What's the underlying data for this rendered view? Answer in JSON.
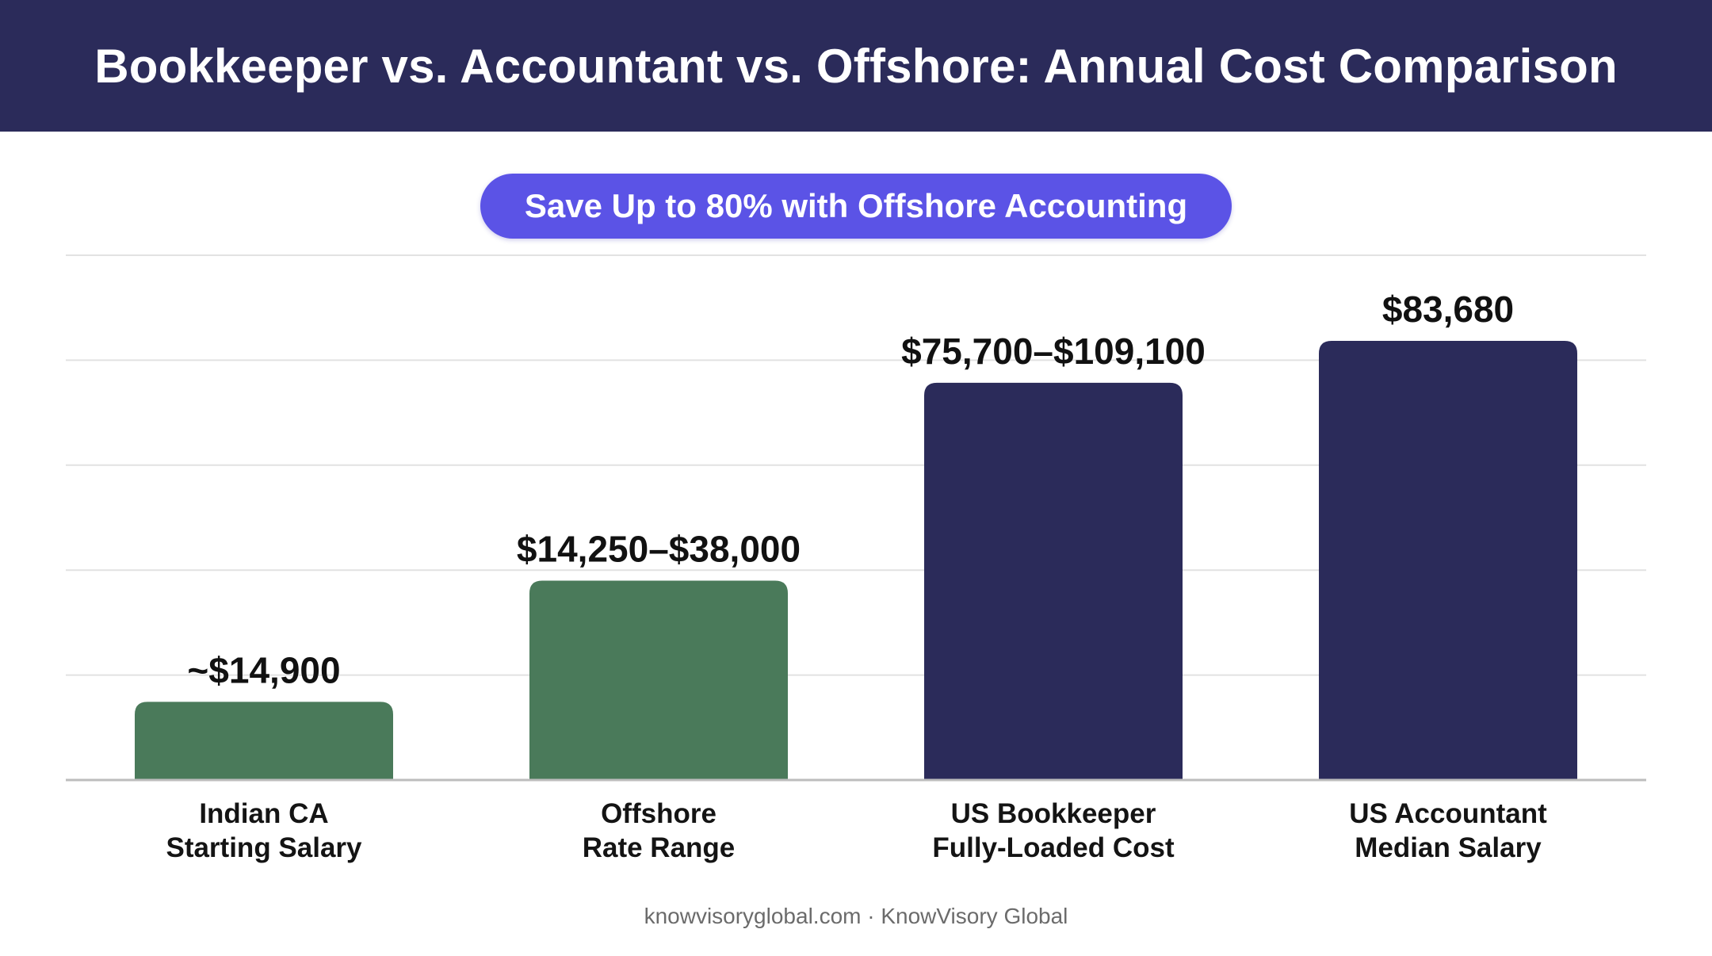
{
  "header": {
    "title": "Bookkeeper vs. Accountant vs. Offshore: Annual Cost Comparison"
  },
  "badge": {
    "text": "Save Up to 80% with Offshore Accounting"
  },
  "footer": {
    "text": "knowvisoryglobal.com · KnowVisory Global"
  },
  "colors": {
    "header_bg": "#2b2b5a",
    "badge_bg": "#5b53e6",
    "offshore_bar": "#4a7a5a",
    "us_bar": "#2b2b5a",
    "gridline": "#e2e2e2",
    "axis": "#bdbdbd"
  },
  "chart_data": {
    "type": "bar",
    "title": "Bookkeeper vs. Accountant vs. Offshore: Annual Cost Comparison",
    "xlabel": "",
    "ylabel": "",
    "ylim": [
      0,
      100000
    ],
    "grid": true,
    "categories": [
      [
        "Indian CA",
        "Starting Salary"
      ],
      [
        "Offshore",
        "Rate Range"
      ],
      [
        "US Bookkeeper",
        "Fully-Loaded Cost"
      ],
      [
        "US Accountant",
        "Median Salary"
      ]
    ],
    "values": [
      14900,
      38000,
      75700,
      83680
    ],
    "data_labels": [
      "~$14,900",
      "$14,250–$38,000",
      "$75,700–$109,100",
      "$83,680"
    ],
    "bar_colors": [
      "#4a7a5a",
      "#4a7a5a",
      "#2b2b5a",
      "#2b2b5a"
    ]
  }
}
